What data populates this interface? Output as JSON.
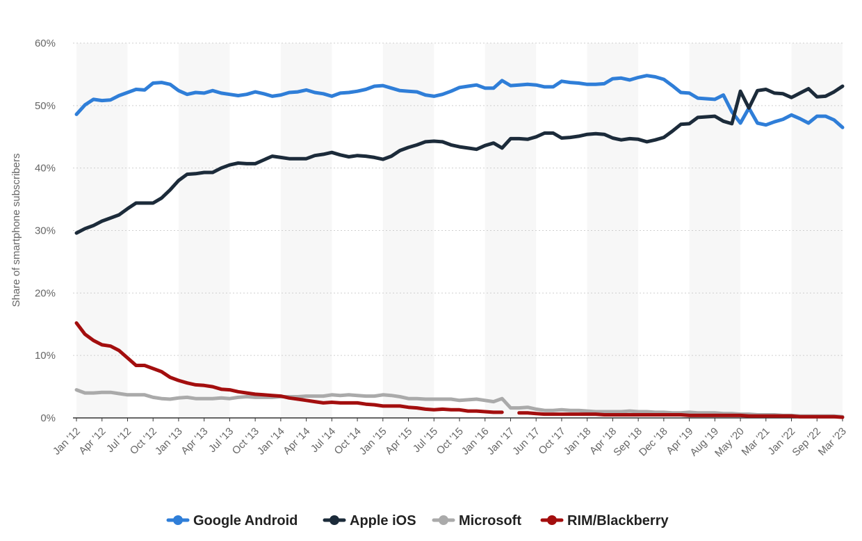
{
  "chart_data": {
    "type": "line",
    "title": "",
    "xlabel": "",
    "ylabel": "Share of smartphone subscribers",
    "ylim": [
      0,
      60
    ],
    "yticks": [
      "0%",
      "10%",
      "20%",
      "30%",
      "40%",
      "50%",
      "60%"
    ],
    "ytick_values": [
      0,
      10,
      20,
      30,
      40,
      50,
      60
    ],
    "x_tick_labels": [
      "Jan '12",
      "Apr '12",
      "Jul '12",
      "Oct '12",
      "Jan '13",
      "Apr '13",
      "Jul '13",
      "Oct '13",
      "Jan '14",
      "Apr '14",
      "Jul '14",
      "Oct '14",
      "Jan '15",
      "Apr '15",
      "Jul '15",
      "Oct '15",
      "Jan '16",
      "Jan '17",
      "Jun '17",
      "Oct '17",
      "Jan '18",
      "Apr '18",
      "Sep '18",
      "Dec '18",
      "Apr '19",
      "Aug '19",
      "May '20",
      "Mar '21",
      "Jan '22",
      "Sep '22",
      "Mar '23"
    ],
    "point_count": 111,
    "legend": "bottom",
    "grid": true,
    "series": [
      {
        "name": "Google Android",
        "color": "#2f7ed8",
        "values": [
          48.6,
          50.1,
          51.0,
          50.8,
          50.9,
          51.6,
          52.1,
          52.6,
          52.5,
          53.6,
          53.7,
          53.4,
          52.4,
          51.8,
          52.1,
          52.0,
          52.4,
          52.0,
          51.8,
          51.6,
          51.8,
          52.2,
          51.9,
          51.5,
          51.7,
          52.1,
          52.2,
          52.5,
          52.1,
          51.9,
          51.5,
          52.0,
          52.1,
          52.3,
          52.6,
          53.1,
          53.2,
          52.8,
          52.4,
          52.3,
          52.2,
          51.7,
          51.5,
          51.8,
          52.3,
          52.9,
          53.1,
          53.3,
          52.8,
          52.8,
          54.0,
          53.2,
          53.3,
          53.4,
          53.3,
          53.0,
          53.0,
          53.9,
          53.7,
          53.6,
          53.4,
          53.4,
          53.5,
          54.3,
          54.4,
          54.1,
          54.5,
          54.8,
          54.6,
          54.2,
          53.2,
          52.1,
          52.0,
          51.2,
          51.1,
          51.0,
          51.7,
          49.0,
          47.2,
          49.6,
          47.2,
          46.9,
          47.4,
          47.8,
          48.5,
          47.9,
          47.2,
          48.3,
          48.3,
          47.7,
          46.5,
          null,
          null,
          null,
          null,
          null,
          null,
          null,
          null,
          null,
          null,
          null,
          null,
          null,
          null,
          null,
          null,
          null,
          null,
          null,
          null
        ],
        "values_note": "series truncated to visible points"
      },
      {
        "name": "Apple iOS",
        "color": "#1c2b3a",
        "values": [
          29.6,
          30.3,
          30.8,
          31.5,
          32.0,
          32.5,
          33.5,
          34.4,
          34.4,
          34.4,
          35.2,
          36.5,
          38.0,
          39.0,
          39.1,
          39.3,
          39.3,
          40.0,
          40.5,
          40.8,
          40.7,
          40.7,
          41.3,
          41.9,
          41.7,
          41.5,
          41.5,
          41.5,
          42.0,
          42.2,
          42.5,
          42.1,
          41.8,
          42.0,
          41.9,
          41.7,
          41.4,
          41.9,
          42.8,
          43.3,
          43.7,
          44.2,
          44.3,
          44.2,
          43.7,
          43.4,
          43.2,
          43.0,
          43.6,
          44.0,
          43.2,
          44.7,
          44.7,
          44.6,
          45.0,
          45.6,
          45.6,
          44.8,
          44.9,
          45.1,
          45.4,
          45.5,
          45.4,
          44.8,
          44.5,
          44.7,
          44.6,
          44.2,
          44.5,
          44.9,
          45.9,
          47.0,
          47.1,
          48.1,
          48.2,
          48.3,
          47.5,
          47.1,
          52.3,
          49.6,
          52.4,
          52.6,
          52.0,
          51.9,
          51.3,
          52.0,
          52.7,
          51.4,
          51.5,
          52.2,
          53.1,
          null,
          null,
          null,
          null,
          null,
          null,
          null,
          null,
          null,
          null,
          null,
          null,
          null,
          null,
          null,
          null,
          null,
          null,
          null,
          null
        ],
        "values_note": "series truncated to visible points"
      },
      {
        "name": "Microsoft",
        "color": "#aaaaaa",
        "values": [
          4.5,
          4.0,
          4.0,
          4.1,
          4.1,
          3.9,
          3.7,
          3.7,
          3.7,
          3.3,
          3.1,
          3.0,
          3.2,
          3.3,
          3.1,
          3.1,
          3.1,
          3.2,
          3.1,
          3.3,
          3.4,
          3.3,
          3.3,
          3.3,
          3.4,
          3.4,
          3.4,
          3.5,
          3.5,
          3.5,
          3.7,
          3.6,
          3.7,
          3.6,
          3.5,
          3.5,
          3.7,
          3.6,
          3.4,
          3.1,
          3.1,
          3.0,
          3.0,
          3.0,
          3.0,
          2.8,
          2.9,
          3.0,
          2.8,
          2.6,
          3.1,
          1.6,
          1.6,
          1.7,
          1.4,
          1.2,
          1.2,
          1.3,
          1.2,
          1.2,
          1.1,
          1.0,
          1.0,
          1.0,
          1.0,
          1.1,
          1.0,
          1.0,
          0.9,
          0.9,
          0.8,
          0.8,
          0.9,
          0.8,
          0.8,
          0.8,
          0.7,
          0.7,
          0.6,
          0.6,
          0.5,
          0.5,
          0.5,
          0.4,
          0.4,
          0.3,
          0.3,
          0.3,
          0.3,
          0.3,
          0.2,
          null,
          null,
          null,
          null,
          null,
          null,
          null,
          null,
          null,
          null,
          null,
          null,
          null,
          null,
          null,
          null,
          null,
          null,
          null,
          null
        ],
        "values_note": "series truncated to visible points"
      },
      {
        "name": "RIM/Blackberry",
        "color": "#a30e0e",
        "values": [
          15.2,
          13.4,
          12.4,
          11.7,
          11.5,
          10.8,
          9.6,
          8.4,
          8.4,
          7.9,
          7.4,
          6.5,
          6.0,
          5.6,
          5.3,
          5.2,
          5.0,
          4.6,
          4.5,
          4.2,
          4.0,
          3.8,
          3.7,
          3.6,
          3.5,
          3.2,
          3.0,
          2.8,
          2.6,
          2.4,
          2.5,
          2.4,
          2.4,
          2.4,
          2.2,
          2.1,
          1.9,
          1.9,
          1.9,
          1.7,
          1.6,
          1.4,
          1.3,
          1.4,
          1.3,
          1.3,
          1.1,
          1.1,
          1.0,
          0.9,
          0.9,
          null,
          0.8,
          0.8,
          0.7,
          0.6,
          0.6,
          0.6,
          0.6,
          0.6,
          0.6,
          0.6,
          0.5,
          0.5,
          0.5,
          0.5,
          0.5,
          0.5,
          0.5,
          0.5,
          0.5,
          0.5,
          0.4,
          0.4,
          0.4,
          0.4,
          0.4,
          0.4,
          0.4,
          0.3,
          0.3,
          0.3,
          0.3,
          0.3,
          0.3,
          0.2,
          0.2,
          0.2,
          0.2,
          0.2,
          0.1,
          null,
          null,
          null,
          null,
          null,
          null,
          null,
          null,
          null,
          null,
          null,
          null,
          null,
          null,
          null,
          null,
          null,
          null,
          null,
          null
        ],
        "values_note": "series truncated to visible points; gap between Jan '16 and Jan '17"
      }
    ]
  }
}
